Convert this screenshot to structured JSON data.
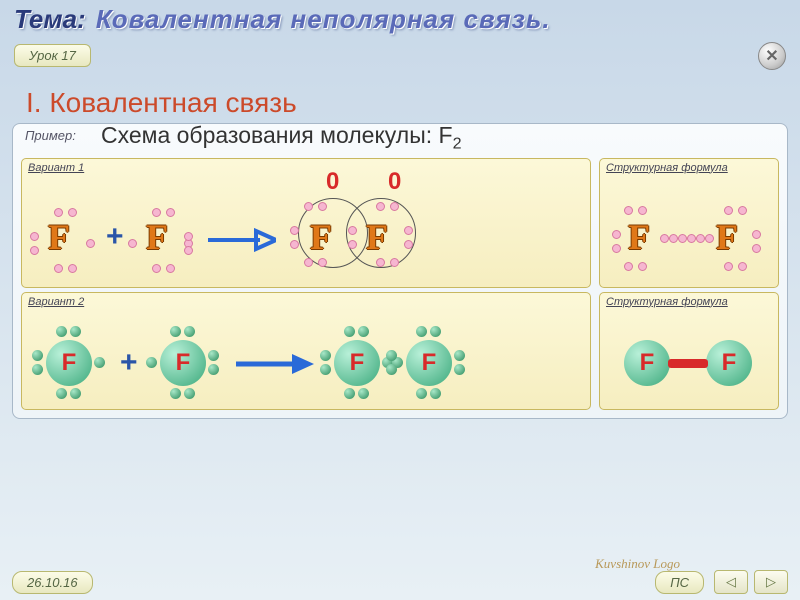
{
  "title": {
    "theme": "Тема:",
    "subject": "Ковалентная неполярная связь."
  },
  "lesson_tab": "Урок 17",
  "close_icon": "✕",
  "section_heading": "I. Ковалентная связь",
  "panel_label": "Пример:",
  "subtitle_prefix": "Схема образования молекулы: ",
  "subtitle_formula": "F",
  "subtitle_subscript": "2",
  "variant1": {
    "label": "Вариант 1",
    "struct_label": "Структурная формула",
    "letter": "F",
    "letter_color": "#e07818",
    "letter_stroke": "#7a3a00",
    "dot_fill": "#f6b6d0",
    "dot_stroke": "#d878a0",
    "plus": "+",
    "arrow_color": "#2a6ad8",
    "zeros": [
      "0",
      "0"
    ],
    "circle_color": "#555555",
    "bond_dot_color": "#f6b6d0"
  },
  "variant2": {
    "label": "Вариант 2",
    "struct_label": "Структурная формула",
    "letter": "F",
    "ball_fill_inner": "#b8f0d8",
    "ball_fill_outer": "#3aa87a",
    "letter_color": "#d82a2a",
    "electron_fill_inner": "#a8e8c8",
    "electron_fill_outer": "#2a8a5a",
    "plus": "+",
    "plus_color": "#2a55a8",
    "arrow_color": "#2a6ad8",
    "bond_color": "#d82a2a"
  },
  "date": "26.10.16",
  "ps": "ПС",
  "logo": "Kuvshinov Logo",
  "nav_prev": "◁",
  "nav_next": "▷"
}
